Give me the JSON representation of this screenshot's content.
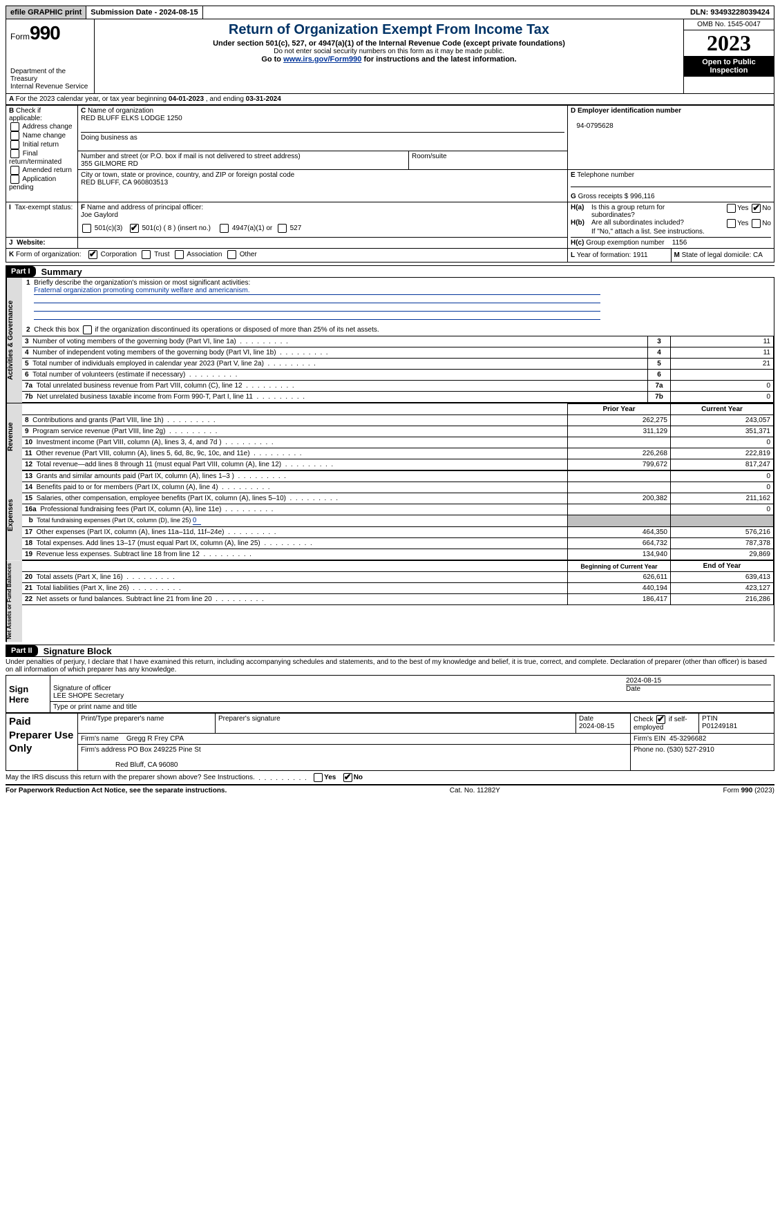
{
  "top": {
    "efile": "efile GRAPHIC print",
    "subdate_lbl": "Submission Date - ",
    "subdate": "2024-08-15",
    "dln_lbl": "DLN: ",
    "dln": "93493228039424"
  },
  "hdr": {
    "form_lbl": "Form",
    "form_no": "990",
    "title": "Return of Organization Exempt From Income Tax",
    "sub": "Under section 501(c), 527, or 4947(a)(1) of the Internal Revenue Code (except private foundations)",
    "ssn": "Do not enter social security numbers on this form as it may be made public.",
    "goto_pre": "Go to ",
    "goto_url": "www.irs.gov/Form990",
    "goto_post": " for instructions and the latest information.",
    "dept": "Department of the Treasury\nInternal Revenue Service",
    "omb": "OMB No. 1545-0047",
    "year": "2023",
    "open": "Open to Public\nInspection"
  },
  "A": {
    "line": "For the 2023 calendar year, or tax year beginning ",
    "beg": "04-01-2023",
    "mid": "  , and ending ",
    "end": "03-31-2024"
  },
  "B": {
    "hdr": "Check if applicable:",
    "opts": [
      "Address change",
      "Name change",
      "Initial return",
      "Final return/terminated",
      "Amended return",
      "Application pending"
    ]
  },
  "C": {
    "name_lbl": "Name of organization",
    "name": "RED BLUFF ELKS LODGE 1250",
    "dba_lbl": "Doing business as",
    "dba": "",
    "addr_lbl": "Number and street (or P.O. box if mail is not delivered to street address)",
    "addr": "355 GILMORE RD",
    "room_lbl": "Room/suite",
    "city_lbl": "City or town, state or province, country, and ZIP or foreign postal code",
    "city": "RED BLUFF, CA  960803513"
  },
  "D": {
    "lbl": "Employer identification number",
    "val": "94-0795628"
  },
  "E": {
    "lbl": "Telephone number",
    "val": ""
  },
  "G": {
    "lbl": "Gross receipts $ ",
    "val": "996,116"
  },
  "F": {
    "lbl": "Name and address of principal officer:",
    "val": "Joe Gaylord"
  },
  "H": {
    "a": "Is this a group return for",
    "a2": "subordinates?",
    "b": "Are all subordinates included?",
    "b2": "If \"No,\" attach a list. See instructions.",
    "c": "Group exemption number",
    "cval": "1156",
    "yes": "Yes",
    "no": "No"
  },
  "I": {
    "lbl": "Tax-exempt status:",
    "o1": "501(c)(3)",
    "o2": "501(c) ( 8 ) (insert no.)",
    "o3": "4947(a)(1) or",
    "o4": "527"
  },
  "J": {
    "lbl": "Website: "
  },
  "K": {
    "lbl": "Form of organization:",
    "o1": "Corporation",
    "o2": "Trust",
    "o3": "Association",
    "o4": "Other"
  },
  "L": {
    "lbl": "Year of formation: ",
    "val": "1911"
  },
  "M": {
    "lbl": "State of legal domicile: ",
    "val": "CA"
  },
  "P1": {
    "hdr": "Part I",
    "title": "Summary",
    "l1": "Briefly describe the organization's mission or most significant activities:",
    "mission": "Fraternal organization promoting community welfare and americanism.",
    "l2": "Check this box ",
    "l2b": " if the organization discontinued its operations or disposed of more than 25% of its net assets.",
    "tabs": {
      "ag": "Activities & Governance",
      "rev": "Revenue",
      "exp": "Expenses",
      "na": "Net Assets or\nFund Balances"
    },
    "cols": {
      "prior": "Prior Year",
      "curr": "Current Year",
      "boy": "Beginning of Current Year",
      "eoy": "End of Year"
    },
    "rows": [
      {
        "n": "3",
        "d": "Number of voting members of the governing body (Part VI, line 1a)",
        "v": "11"
      },
      {
        "n": "4",
        "d": "Number of independent voting members of the governing body (Part VI, line 1b)",
        "v": "11"
      },
      {
        "n": "5",
        "d": "Total number of individuals employed in calendar year 2023 (Part V, line 2a)",
        "v": "21"
      },
      {
        "n": "6",
        "d": "Total number of volunteers (estimate if necessary)",
        "v": ""
      },
      {
        "n": "7a",
        "d": "Total unrelated business revenue from Part VIII, column (C), line 12",
        "v": "0"
      },
      {
        "n": "7b",
        "d": "Net unrelated business taxable income from Form 990-T, Part I, line 11",
        "v": "0"
      }
    ],
    "rev": [
      {
        "n": "8",
        "d": "Contributions and grants (Part VIII, line 1h)",
        "p": "262,275",
        "c": "243,057"
      },
      {
        "n": "9",
        "d": "Program service revenue (Part VIII, line 2g)",
        "p": "311,129",
        "c": "351,371"
      },
      {
        "n": "10",
        "d": "Investment income (Part VIII, column (A), lines 3, 4, and 7d )",
        "p": "",
        "c": "0"
      },
      {
        "n": "11",
        "d": "Other revenue (Part VIII, column (A), lines 5, 6d, 8c, 9c, 10c, and 11e)",
        "p": "226,268",
        "c": "222,819"
      },
      {
        "n": "12",
        "d": "Total revenue—add lines 8 through 11 (must equal Part VIII, column (A), line 12)",
        "p": "799,672",
        "c": "817,247"
      }
    ],
    "exp": [
      {
        "n": "13",
        "d": "Grants and similar amounts paid (Part IX, column (A), lines 1–3 )",
        "p": "",
        "c": "0"
      },
      {
        "n": "14",
        "d": "Benefits paid to or for members (Part IX, column (A), line 4)",
        "p": "",
        "c": "0"
      },
      {
        "n": "15",
        "d": "Salaries, other compensation, employee benefits (Part IX, column (A), lines 5–10)",
        "p": "200,382",
        "c": "211,162"
      },
      {
        "n": "16a",
        "d": "Professional fundraising fees (Part IX, column (A), line 11e)",
        "p": "",
        "c": "0"
      },
      {
        "n": "b",
        "d": "Total fundraising expenses (Part IX, column (D), line 25) ",
        "fe": "0",
        "shade": true
      },
      {
        "n": "17",
        "d": "Other expenses (Part IX, column (A), lines 11a–11d, 11f–24e)",
        "p": "464,350",
        "c": "576,216"
      },
      {
        "n": "18",
        "d": "Total expenses. Add lines 13–17 (must equal Part IX, column (A), line 25)",
        "p": "664,732",
        "c": "787,378"
      },
      {
        "n": "19",
        "d": "Revenue less expenses. Subtract line 18 from line 12",
        "p": "134,940",
        "c": "29,869"
      }
    ],
    "na": [
      {
        "n": "20",
        "d": "Total assets (Part X, line 16)",
        "p": "626,611",
        "c": "639,413"
      },
      {
        "n": "21",
        "d": "Total liabilities (Part X, line 26)",
        "p": "440,194",
        "c": "423,127"
      },
      {
        "n": "22",
        "d": "Net assets or fund balances. Subtract line 21 from line 20",
        "p": "186,417",
        "c": "216,286"
      }
    ]
  },
  "P2": {
    "hdr": "Part II",
    "title": "Signature Block",
    "decl": "Under penalties of perjury, I declare that I have examined this return, including accompanying schedules and statements, and to the best of my knowledge and belief, it is true, correct, and complete. Declaration of preparer (other than officer) is based on all information of which preparer has any knowledge.",
    "signhere": "Sign Here",
    "sig_lbl": "Signature of officer",
    "sig_name": "LEE SHOPE Secretary",
    "sig_type": "Type or print name and title",
    "sig_date_lbl": "Date",
    "sig_date": "2024-08-15",
    "paid": "Paid Preparer Use Only",
    "pp_name_lbl": "Print/Type preparer's name",
    "pp_sig_lbl": "Preparer's signature",
    "pp_date_lbl": "Date",
    "pp_date": "2024-08-15",
    "pp_chk": "Check",
    "pp_self": "if self-employed",
    "pp_ptin_lbl": "PTIN",
    "pp_ptin": "P01249181",
    "firm_name_lbl": "Firm's name",
    "firm_name": "Gregg R Frey CPA",
    "firm_ein_lbl": "Firm's EIN",
    "firm_ein": "45-3296682",
    "firm_addr_lbl": "Firm's address",
    "firm_addr": "PO Box 249225 Pine St",
    "firm_city": "Red Bluff, CA  96080",
    "firm_ph_lbl": "Phone no.",
    "firm_ph": "(530) 527-2910",
    "discuss": "May the IRS discuss this return with the preparer shown above? See Instructions."
  },
  "foot": {
    "pra": "For Paperwork Reduction Act Notice, see the separate instructions.",
    "cat": "Cat. No. 11282Y",
    "form": "Form 990 (2023)"
  }
}
